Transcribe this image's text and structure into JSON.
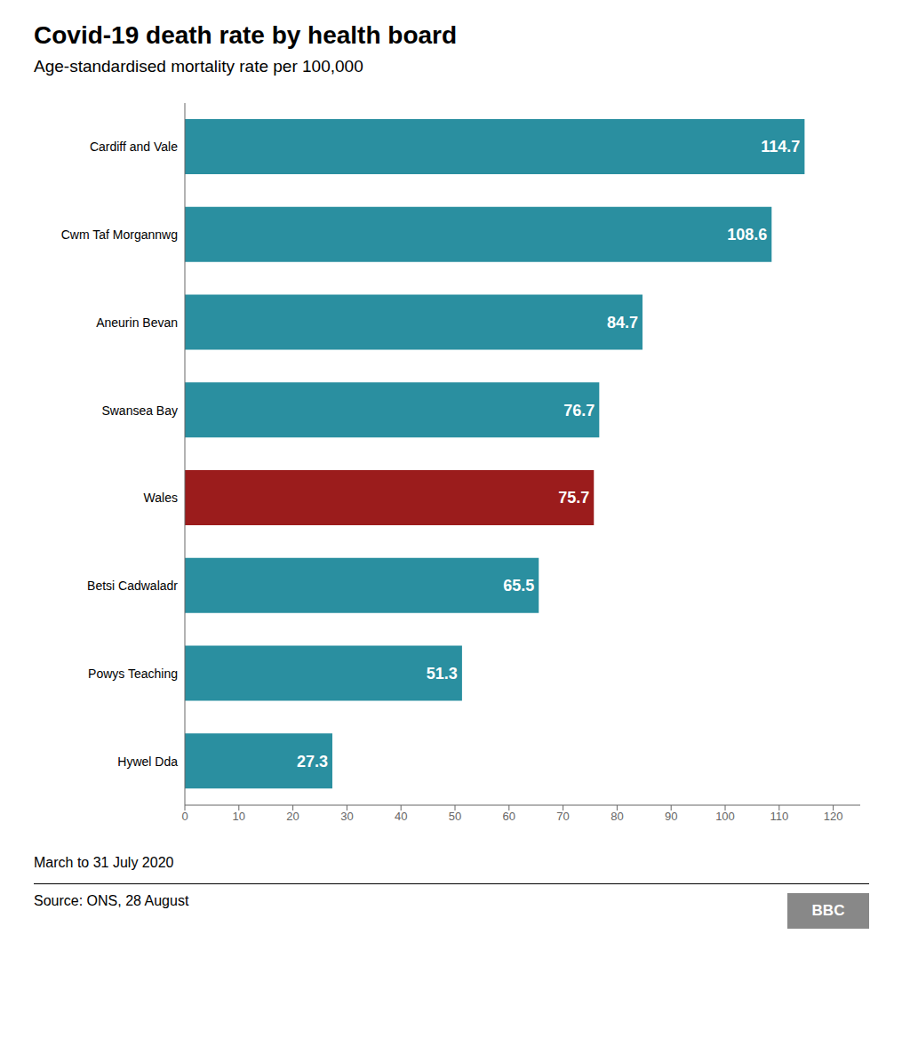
{
  "chart_data": {
    "type": "bar",
    "orientation": "horizontal",
    "title": "Covid-19 death rate by health board",
    "subtitle": "Age-standardised mortality rate per 100,000",
    "categories": [
      "Cardiff and Vale",
      "Cwm Taf Morgannwg",
      "Aneurin Bevan",
      "Swansea Bay",
      "Wales",
      "Betsi Cadwaladr",
      "Powys Teaching",
      "Hywel Dda"
    ],
    "values": [
      114.7,
      108.6,
      84.7,
      76.7,
      75.7,
      65.5,
      51.3,
      27.3
    ],
    "colors": [
      "#2a8fa0",
      "#2a8fa0",
      "#2a8fa0",
      "#2a8fa0",
      "#9b1c1c",
      "#2a8fa0",
      "#2a8fa0",
      "#2a8fa0"
    ],
    "xlim": [
      0,
      125
    ],
    "xticks": [
      0,
      10,
      20,
      30,
      40,
      50,
      60,
      70,
      80,
      90,
      100,
      110,
      120
    ],
    "data_labels": true,
    "grid": false,
    "annotations": [
      "March to 31 July 2020",
      "Source: ONS, 28 August",
      "BBC"
    ]
  }
}
